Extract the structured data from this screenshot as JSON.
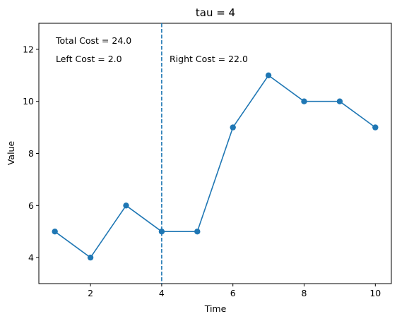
{
  "chart_data": {
    "type": "line",
    "title": "tau = 4",
    "xlabel": "Time",
    "ylabel": "Value",
    "x": [
      1,
      2,
      3,
      4,
      5,
      6,
      7,
      8,
      9,
      10
    ],
    "series": [
      {
        "values": [
          5,
          4,
          6,
          5,
          5,
          9,
          11,
          10,
          10,
          9
        ],
        "color": "#1f77b4",
        "marker": "circle"
      }
    ],
    "xlim": [
      0.55,
      10.45
    ],
    "ylim": [
      3,
      13
    ],
    "xticks": [
      2,
      4,
      6,
      8,
      10
    ],
    "yticks": [
      4,
      6,
      8,
      10,
      12
    ],
    "grid": false,
    "vline": {
      "x": 4,
      "style": "dashed",
      "color": "#1f77b4"
    },
    "annotations": {
      "total_cost": "Total Cost = 24.0",
      "left_cost": "Left Cost = 2.0",
      "right_cost": "Right Cost = 22.0"
    }
  }
}
